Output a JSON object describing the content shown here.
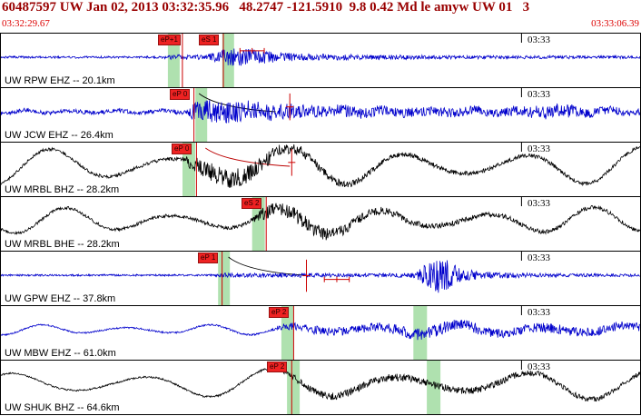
{
  "header": {
    "title": "60487597 UW Jan 02, 2013 03:32:35.96   48.2747 -121.5910  9.8 0.42 Md le amyw UW 01   3",
    "start_time": "03:32:29.67",
    "end_time": "03:33:06.39"
  },
  "chart_data": {
    "type": "line",
    "title": "Seismogram traces for event 60487597",
    "x_window": [
      "03:32:29.67",
      "03:33:06.39"
    ],
    "minute_mark": "03:33",
    "panels": [
      {
        "station": "UW RPW EHZ -- 20.1km",
        "time_label": "03:33",
        "color": "#0000cc",
        "picks": [
          {
            "label": "eP+1",
            "x": 0.284
          },
          {
            "label": "eS 1",
            "x": 0.348
          }
        ],
        "bands": [
          {
            "x": 0.2705,
            "w": 13
          },
          {
            "x": 0.3555,
            "w": 13
          }
        ],
        "markers": [
          {
            "type": "hbar",
            "x1": 0.374,
            "x2": 0.412,
            "y": 0.32
          }
        ],
        "trace": {
          "seed": 101,
          "envelope": [
            [
              0,
              1.2
            ],
            [
              0.25,
              1.2
            ],
            [
              0.27,
              3
            ],
            [
              0.32,
              2.5
            ],
            [
              0.345,
              8
            ],
            [
              0.375,
              11
            ],
            [
              0.41,
              7
            ],
            [
              0.47,
              4
            ],
            [
              0.55,
              3
            ],
            [
              0.7,
              2
            ],
            [
              1,
              1.5
            ]
          ],
          "lowfreq": {
            "amp": 0,
            "period": 0.2,
            "phase": 0
          }
        }
      },
      {
        "station": "UW JCW EHZ -- 26.4km",
        "time_label": "03:33",
        "color": "#0000cc",
        "picks": [
          {
            "label": "eP 0",
            "x": 0.302
          }
        ],
        "bands": [
          {
            "x": 0.3135,
            "w": 13
          }
        ],
        "coda": {
          "x1": 0.31,
          "x2": 0.43,
          "color": "#000000"
        },
        "markers": [
          {
            "type": "vline",
            "x": 0.452,
            "y1": 0.1,
            "y2": 0.6
          }
        ],
        "trace": {
          "seed": 202,
          "envelope": [
            [
              0,
              2.2
            ],
            [
              0.29,
              2.5
            ],
            [
              0.305,
              11
            ],
            [
              0.35,
              13
            ],
            [
              0.42,
              9
            ],
            [
              0.5,
              7
            ],
            [
              0.6,
              6
            ],
            [
              0.7,
              5
            ],
            [
              0.78,
              4.5
            ],
            [
              0.83,
              7
            ],
            [
              0.87,
              9
            ],
            [
              0.92,
              5
            ],
            [
              1,
              3.5
            ]
          ],
          "lowfreq": {
            "amp": 2,
            "period": 0.07,
            "phase": 1
          }
        }
      },
      {
        "station": "UW MRBL BHZ -- 28.2km",
        "time_label": "03:33",
        "color": "#000000",
        "picks": [
          {
            "label": "eP 0",
            "x": 0.306
          }
        ],
        "bands": [
          {
            "x": 0.294,
            "w": 14
          }
        ],
        "coda": {
          "x1": 0.32,
          "x2": 0.452,
          "color": "#bb0000"
        },
        "markers": [
          {
            "type": "vline",
            "x": 0.455,
            "y1": 0.12,
            "y2": 0.62
          }
        ],
        "trace": {
          "seed": 303,
          "envelope": [
            [
              0,
              1.5
            ],
            [
              0.28,
              2
            ],
            [
              0.3,
              9
            ],
            [
              0.36,
              11
            ],
            [
              0.44,
              7
            ],
            [
              0.52,
              4
            ],
            [
              0.62,
              2.5
            ],
            [
              1,
              2
            ]
          ],
          "lowfreq": {
            "amp": 20,
            "period": 0.185,
            "phase": 2.0
          }
        }
      },
      {
        "station": "UW MRBL BHE -- 28.2km",
        "time_label": "03:33",
        "color": "#000000",
        "picks": [
          {
            "label": "eS 2",
            "x": 0.415
          }
        ],
        "bands": [
          {
            "x": 0.403,
            "w": 14
          }
        ],
        "trace": {
          "seed": 404,
          "envelope": [
            [
              0,
              1.5
            ],
            [
              0.39,
              2
            ],
            [
              0.41,
              7
            ],
            [
              0.47,
              9
            ],
            [
              0.56,
              5
            ],
            [
              0.68,
              3
            ],
            [
              1,
              2
            ]
          ],
          "lowfreq": {
            "amp": 14,
            "period": 0.165,
            "phase": 0.8
          }
        }
      },
      {
        "station": "UW GPW EHZ -- 37.8km",
        "time_label": "03:33",
        "color": "#0000cc",
        "picks": [
          {
            "label": "eP 1",
            "x": 0.346
          }
        ],
        "bands": [
          {
            "x": 0.349,
            "w": 13
          }
        ],
        "coda": {
          "x1": 0.356,
          "x2": 0.474,
          "color": "#000000"
        },
        "markers": [
          {
            "type": "vline",
            "x": 0.478,
            "y1": 0.15,
            "y2": 0.75
          },
          {
            "type": "hbar",
            "x1": 0.506,
            "x2": 0.545,
            "y": 0.52
          }
        ],
        "trace": {
          "seed": 505,
          "envelope": [
            [
              0,
              1
            ],
            [
              0.33,
              1
            ],
            [
              0.35,
              2.5
            ],
            [
              0.45,
              2.5
            ],
            [
              0.55,
              2
            ],
            [
              0.645,
              2.5
            ],
            [
              0.665,
              13
            ],
            [
              0.69,
              22
            ],
            [
              0.715,
              10
            ],
            [
              0.75,
              4
            ],
            [
              0.85,
              2
            ],
            [
              1,
              1.5
            ]
          ],
          "lowfreq": {
            "amp": 0,
            "period": 0.2,
            "phase": 0
          }
        }
      },
      {
        "station": "UW MBW EHZ -- 61.0km",
        "time_label": "03:33",
        "color": "#0000cc",
        "picks": [
          {
            "label": "eP 2",
            "x": 0.458
          }
        ],
        "bands": [
          {
            "x": 0.448,
            "w": 13
          },
          {
            "x": 0.656,
            "w": 15
          }
        ],
        "trace": {
          "seed": 606,
          "envelope": [
            [
              0,
              0.8
            ],
            [
              0.42,
              1
            ],
            [
              0.45,
              4
            ],
            [
              0.5,
              5
            ],
            [
              0.56,
              4.5
            ],
            [
              0.63,
              6
            ],
            [
              0.68,
              7
            ],
            [
              0.73,
              6
            ],
            [
              0.8,
              5
            ],
            [
              0.88,
              5.5
            ],
            [
              1,
              4.5
            ]
          ],
          "lowfreq": {
            "amp": 5.5,
            "period": 0.13,
            "phase": 1.5
          }
        }
      },
      {
        "station": "UW SHUK BHZ -- 64.6km",
        "time_label": "03:33",
        "color": "#000000",
        "picks": [
          {
            "label": "eP 2",
            "x": 0.455
          }
        ],
        "bands": [
          {
            "x": 0.4575,
            "w": 14
          },
          {
            "x": 0.677,
            "w": 15
          }
        ],
        "trace": {
          "seed": 707,
          "envelope": [
            [
              0,
              0.8
            ],
            [
              0.43,
              1.2
            ],
            [
              0.46,
              3.5
            ],
            [
              0.55,
              4.5
            ],
            [
              0.7,
              4
            ],
            [
              0.85,
              3
            ],
            [
              1,
              2.5
            ]
          ],
          "lowfreq": {
            "amp": 16,
            "period": 0.2,
            "phase": 4.0
          }
        }
      }
    ],
    "colors": {
      "pick_line": "#cc0000",
      "highlight_band": "rgba(110,200,110,0.55)",
      "header_text": "#990000",
      "time_text": "#dd0000"
    }
  }
}
